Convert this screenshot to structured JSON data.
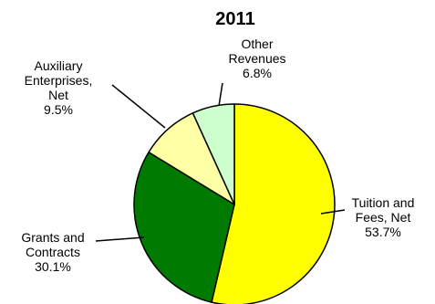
{
  "chart_data": {
    "type": "pie",
    "title": "2011",
    "slices": [
      {
        "label_lines": [
          "Tuition and",
          "Fees, Net"
        ],
        "percent_label": "53.7%",
        "value": 53.7,
        "color": "#FFFF00"
      },
      {
        "label_lines": [
          "Grants and",
          "Contracts"
        ],
        "percent_label": "30.1%",
        "value": 30.1,
        "color": "#007A00"
      },
      {
        "label_lines": [
          "Auxiliary",
          "Enterprises,",
          "Net"
        ],
        "percent_label": "9.5%",
        "value": 9.5,
        "color": "#FFFFA6"
      },
      {
        "label_lines": [
          "Other",
          "Revenues"
        ],
        "percent_label": "6.8%",
        "value": 6.8,
        "color": "#CCFFCC"
      }
    ],
    "start_angle": "12 o'clock",
    "direction": "clockwise",
    "legend": "none"
  }
}
